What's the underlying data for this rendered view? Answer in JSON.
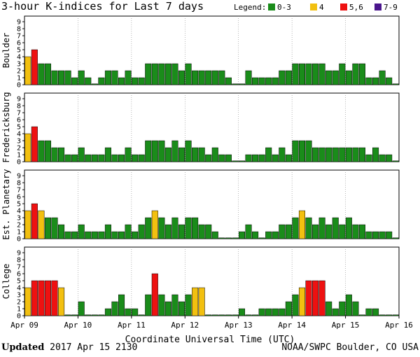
{
  "header": {
    "title": "3-hour K-indices for Last 7 days"
  },
  "legend": {
    "label": "Legend:",
    "items": [
      {
        "label": "0-3",
        "color": "#1a8c1a"
      },
      {
        "label": "4",
        "color": "#f2c010"
      },
      {
        "label": "5,6",
        "color": "#ee1111"
      },
      {
        "label": "7-9",
        "color": "#4a158c"
      }
    ]
  },
  "footer": {
    "updated_label": "Updated",
    "updated_value": "2017 Apr 15 2130",
    "source": "NOAA/SWPC Boulder, CO USA"
  },
  "chart_data": {
    "type": "bar",
    "title": "3-hour K-indices for Last 7 days",
    "xlabel": "Coordinate Universal Time (UTC)",
    "xticks": [
      "Apr 09",
      "Apr 10",
      "Apr 11",
      "Apr 12",
      "Apr 13",
      "Apr 14",
      "Apr 15",
      "Apr 16"
    ],
    "ylim": [
      0,
      9
    ],
    "yticks": [
      0,
      1,
      2,
      3,
      4,
      5,
      6,
      7,
      8,
      9
    ],
    "bins_per_day": 8,
    "panels": [
      {
        "name": "Boulder",
        "values": [
          4,
          5,
          3,
          3,
          2,
          2,
          2,
          1,
          2,
          1,
          0,
          1,
          2,
          2,
          1,
          2,
          1,
          1,
          3,
          3,
          3,
          3,
          3,
          2,
          3,
          2,
          2,
          2,
          2,
          2,
          1,
          0,
          0,
          2,
          1,
          1,
          1,
          1,
          2,
          2,
          3,
          3,
          3,
          3,
          3,
          2,
          2,
          3,
          2,
          3,
          3,
          1,
          1,
          2,
          1,
          0
        ]
      },
      {
        "name": "Fredericksburg",
        "values": [
          4,
          5,
          3,
          3,
          2,
          2,
          1,
          1,
          2,
          1,
          1,
          1,
          2,
          1,
          1,
          2,
          1,
          1,
          3,
          3,
          3,
          2,
          3,
          2,
          3,
          2,
          2,
          1,
          2,
          1,
          1,
          0,
          0,
          1,
          1,
          1,
          2,
          1,
          2,
          1,
          3,
          3,
          3,
          2,
          2,
          2,
          2,
          2,
          2,
          2,
          2,
          1,
          2,
          1,
          1,
          0
        ]
      },
      {
        "name": "Est. Planetary",
        "values": [
          4,
          5,
          4,
          3,
          3,
          2,
          1,
          1,
          2,
          1,
          1,
          1,
          2,
          1,
          1,
          2,
          1,
          2,
          3,
          4,
          3,
          2,
          3,
          2,
          3,
          3,
          2,
          2,
          1,
          0,
          0,
          0,
          1,
          2,
          1,
          0,
          1,
          1,
          2,
          2,
          3,
          4,
          3,
          2,
          3,
          2,
          3,
          2,
          3,
          2,
          2,
          1,
          1,
          1,
          1,
          0
        ]
      },
      {
        "name": "College",
        "values": [
          4,
          5,
          5,
          5,
          5,
          4,
          0,
          0,
          2,
          0,
          0,
          0,
          1,
          2,
          3,
          1,
          1,
          0,
          3,
          6,
          3,
          2,
          3,
          2,
          3,
          4,
          4,
          0,
          0,
          0,
          0,
          0,
          1,
          0,
          0,
          1,
          1,
          1,
          1,
          2,
          3,
          4,
          5,
          5,
          5,
          2,
          1,
          2,
          3,
          2,
          0,
          1,
          1,
          0,
          0,
          0
        ]
      }
    ]
  }
}
